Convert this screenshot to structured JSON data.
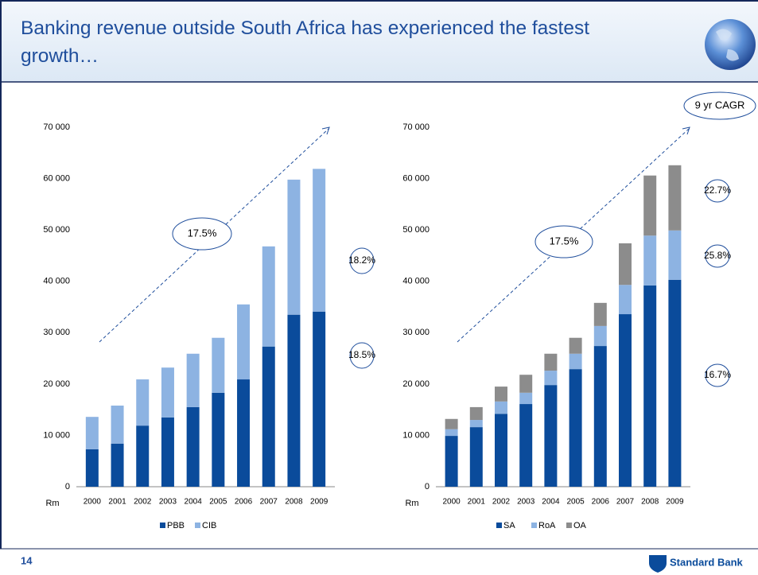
{
  "header": {
    "title": "Banking revenue outside South Africa has experienced the fastest growth…"
  },
  "footer": {
    "page_number": "14",
    "logo": "Standard Bank"
  },
  "chart_data": [
    {
      "type": "bar",
      "stacked": true,
      "y_label": "Rm",
      "categories": [
        "2000",
        "2001",
        "2002",
        "2003",
        "2004",
        "2005",
        "2006",
        "2007",
        "2008",
        "2009"
      ],
      "series": [
        {
          "name": "PBB",
          "color": "#0a4b9b",
          "values": [
            7300,
            8400,
            11900,
            13500,
            15500,
            18300,
            20900,
            27300,
            33500,
            34100
          ]
        },
        {
          "name": "CIB",
          "color": "#8db3e2",
          "values": [
            6300,
            7400,
            9000,
            9700,
            10400,
            10700,
            14600,
            19500,
            26300,
            27800
          ]
        }
      ],
      "ylim": [
        0,
        70000
      ],
      "yticks": [
        {
          "value": 0,
          "label": "0"
        },
        {
          "value": 10000,
          "label": "10 000"
        },
        {
          "value": 20000,
          "label": "20 000"
        },
        {
          "value": 30000,
          "label": "30 000"
        },
        {
          "value": 40000,
          "label": "40 000"
        },
        {
          "value": 50000,
          "label": "50 000"
        },
        {
          "value": 60000,
          "label": "60 000"
        },
        {
          "value": 70000,
          "label": "70 000"
        }
      ],
      "annotations": [
        "17.5%",
        "18.2%",
        "18.5%"
      ]
    },
    {
      "type": "bar",
      "stacked": true,
      "y_label": "Rm",
      "categories": [
        "2000",
        "2001",
        "2002",
        "2003",
        "2004",
        "2005",
        "2006",
        "2007",
        "2008",
        "2009"
      ],
      "series": [
        {
          "name": "SA",
          "color": "#0a4b9b",
          "values": [
            9900,
            11600,
            14200,
            16100,
            19800,
            22900,
            27400,
            33600,
            39200,
            40300
          ]
        },
        {
          "name": "RoA",
          "color": "#8db3e2",
          "values": [
            1300,
            1400,
            2400,
            2200,
            2800,
            3000,
            3900,
            5700,
            9700,
            9600
          ]
        },
        {
          "name": "OA",
          "color": "#8c8c8c",
          "values": [
            2000,
            2500,
            2900,
            3500,
            3300,
            3100,
            4500,
            8100,
            11700,
            12700
          ]
        }
      ],
      "ylim": [
        0,
        70000
      ],
      "yticks": [
        {
          "value": 0,
          "label": "0"
        },
        {
          "value": 10000,
          "label": "10 000"
        },
        {
          "value": 20000,
          "label": "20 000"
        },
        {
          "value": 30000,
          "label": "30 000"
        },
        {
          "value": 40000,
          "label": "40 000"
        },
        {
          "value": 50000,
          "label": "50 000"
        },
        {
          "value": 60000,
          "label": "60 000"
        },
        {
          "value": 70000,
          "label": "70 000"
        }
      ],
      "annotations": [
        "9 yr CAGR",
        "17.5%",
        "22.7%",
        "25.8%",
        "16.7%"
      ]
    }
  ]
}
